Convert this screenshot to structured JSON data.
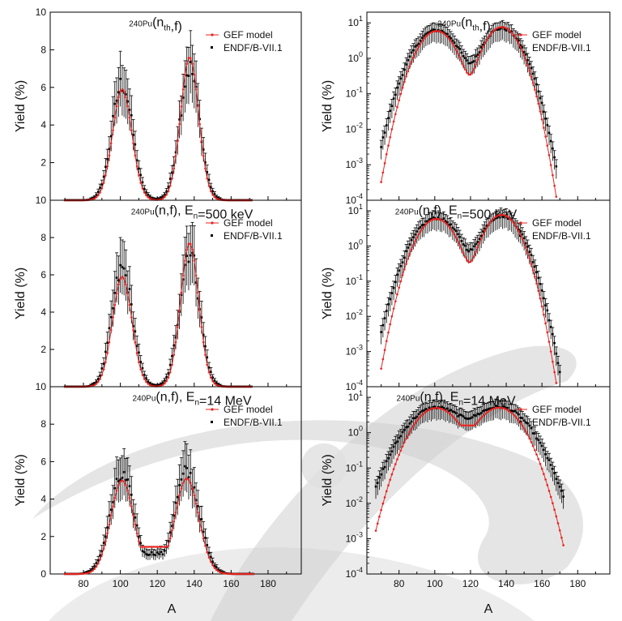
{
  "colors": {
    "gef": "#e8231f",
    "endf": "#000000",
    "swoosh": "#cfcfcf"
  },
  "legend": {
    "gef": "GEF model",
    "endf": "ENDF/B-VII.1"
  },
  "shared_xlabel": "A",
  "chart_data": [
    {
      "id": "nth-linear",
      "type": "line",
      "scale": "linear",
      "title": "^240Pu(n_th,f)",
      "xlabel": "",
      "ylabel": "Yield (%)",
      "xlim": [
        62,
        198
      ],
      "ylim": [
        0,
        10
      ],
      "xticks": [],
      "yticks": [
        2,
        4,
        6,
        8,
        10
      ],
      "ytick_labels": [
        "2",
        "4",
        "6",
        "8",
        "10"
      ],
      "bottom_label": "10",
      "peaks": {
        "L": {
          "a": 101,
          "h": 6.2,
          "s": 5.6
        },
        "H": {
          "a": 137.5,
          "h": 7.0,
          "s": 5.4
        },
        "floor": 0.01,
        "min": 70,
        "max": 171
      },
      "gef_peaks": {
        "L": {
          "a": 101,
          "h": 5.9,
          "s": 5.2
        },
        "H": {
          "a": 137.5,
          "h": 7.6,
          "s": 4.9
        },
        "floor": 0.0
      }
    },
    {
      "id": "nth-log",
      "type": "line",
      "scale": "log",
      "title": "^240Pu(n_th,f)",
      "xlabel": "",
      "ylabel": "Yield (%)",
      "xlim": [
        62,
        198
      ],
      "ylim": [
        0.0001,
        20
      ],
      "xticks": [],
      "yticks": [
        0.0001,
        0.001,
        0.01,
        0.1,
        1,
        10
      ],
      "ytick_labels": [
        "10^-4",
        "10^-3",
        "10^-2",
        "10^-1",
        "10^0",
        "10^1"
      ],
      "peaks": {
        "L": {
          "a": 101,
          "h": 6.2,
          "s": 8.0
        },
        "H": {
          "a": 137.5,
          "h": 7.0,
          "s": 7.2
        },
        "floor": 0.032,
        "min": 70,
        "max": 168
      },
      "gef_peaks": {
        "L": {
          "a": 101,
          "h": 5.9,
          "s": 7.0
        },
        "H": {
          "a": 137.5,
          "h": 7.6,
          "s": 6.5
        },
        "floor": 0.011
      }
    },
    {
      "id": "500-linear",
      "type": "line",
      "scale": "linear",
      "title": "^240Pu(n,f), E_n=500 keV",
      "xlabel": "",
      "ylabel": "Yield (%)",
      "xlim": [
        62,
        198
      ],
      "ylim": [
        0,
        10
      ],
      "xticks": [],
      "yticks": [
        2,
        4,
        6,
        8
      ],
      "ytick_labels": [
        "2",
        "4",
        "6",
        "8"
      ],
      "bottom_label": "10",
      "peaks": {
        "L": {
          "a": 101,
          "h": 6.3,
          "s": 5.6
        },
        "H": {
          "a": 137.5,
          "h": 7.3,
          "s": 5.4
        },
        "floor": 0.03,
        "min": 70,
        "max": 171
      },
      "gef_peaks": {
        "L": {
          "a": 101,
          "h": 5.9,
          "s": 5.2
        },
        "H": {
          "a": 137.5,
          "h": 7.7,
          "s": 4.9
        },
        "floor": 0.01
      }
    },
    {
      "id": "500-log",
      "type": "line",
      "scale": "log",
      "title": "^240Pu(n,f), E_n=500 keV",
      "xlabel": "",
      "ylabel": "Yield (%)",
      "xlim": [
        62,
        198
      ],
      "ylim": [
        0.0001,
        20
      ],
      "xticks": [],
      "yticks": [
        0.0001,
        0.001,
        0.01,
        0.1,
        1,
        10
      ],
      "ytick_labels": [
        "10^-4",
        "10^-3",
        "10^-2",
        "10^-1",
        "10^0",
        "10^1"
      ],
      "peaks": {
        "L": {
          "a": 101,
          "h": 6.3,
          "s": 8.0
        },
        "H": {
          "a": 137.5,
          "h": 7.3,
          "s": 7.2
        },
        "floor": 0.065,
        "min": 70,
        "max": 170
      },
      "gef_peaks": {
        "L": {
          "a": 101,
          "h": 5.9,
          "s": 7.0
        },
        "H": {
          "a": 137.5,
          "h": 7.7,
          "s": 6.5
        },
        "floor": 0.016
      }
    },
    {
      "id": "14-linear",
      "type": "line",
      "scale": "linear",
      "title": "^240Pu(n,f), E_n=14 MeV",
      "xlabel": "A",
      "ylabel": "Yield (%)",
      "xlim": [
        62,
        198
      ],
      "ylim": [
        0,
        10
      ],
      "xticks": [
        80,
        100,
        120,
        140,
        160,
        180
      ],
      "yticks": [
        0,
        2,
        4,
        6,
        8
      ],
      "ytick_labels": [
        "0",
        "2",
        "4",
        "6",
        "8"
      ],
      "peaks": {
        "L": {
          "a": 101,
          "h": 5.2,
          "s": 6.6
        },
        "H": {
          "a": 136,
          "h": 5.4,
          "s": 6.8
        },
        "floor": 1.1,
        "min": 70,
        "max": 172
      },
      "gef_peaks": {
        "L": {
          "a": 101,
          "h": 5.0,
          "s": 6.2
        },
        "H": {
          "a": 136,
          "h": 5.1,
          "s": 6.4
        },
        "floor": 1.45
      }
    },
    {
      "id": "14-log",
      "type": "line",
      "scale": "log",
      "title": "^240Pu(n,f), E_n=14 MeV",
      "xlabel": "A",
      "ylabel": "Yield (%)",
      "xlim": [
        62,
        198
      ],
      "ylim": [
        0.0001,
        20
      ],
      "xticks": [
        80,
        100,
        120,
        140,
        160,
        180
      ],
      "yticks": [
        0.0001,
        0.001,
        0.01,
        0.1,
        1,
        10
      ],
      "ytick_labels": [
        "10^-4",
        "10^-3",
        "10^-2",
        "10^-1",
        "10^0",
        "10^1"
      ],
      "peaks": {
        "L": {
          "a": 101,
          "h": 5.2,
          "s": 10.5
        },
        "H": {
          "a": 136,
          "h": 5.4,
          "s": 10.5
        },
        "floor": 1.2,
        "min": 67,
        "max": 172
      },
      "gef_peaks": {
        "L": {
          "a": 101,
          "h": 5.0,
          "s": 8.5
        },
        "H": {
          "a": 136,
          "h": 5.1,
          "s": 8.5
        },
        "floor": 1.6
      }
    }
  ]
}
